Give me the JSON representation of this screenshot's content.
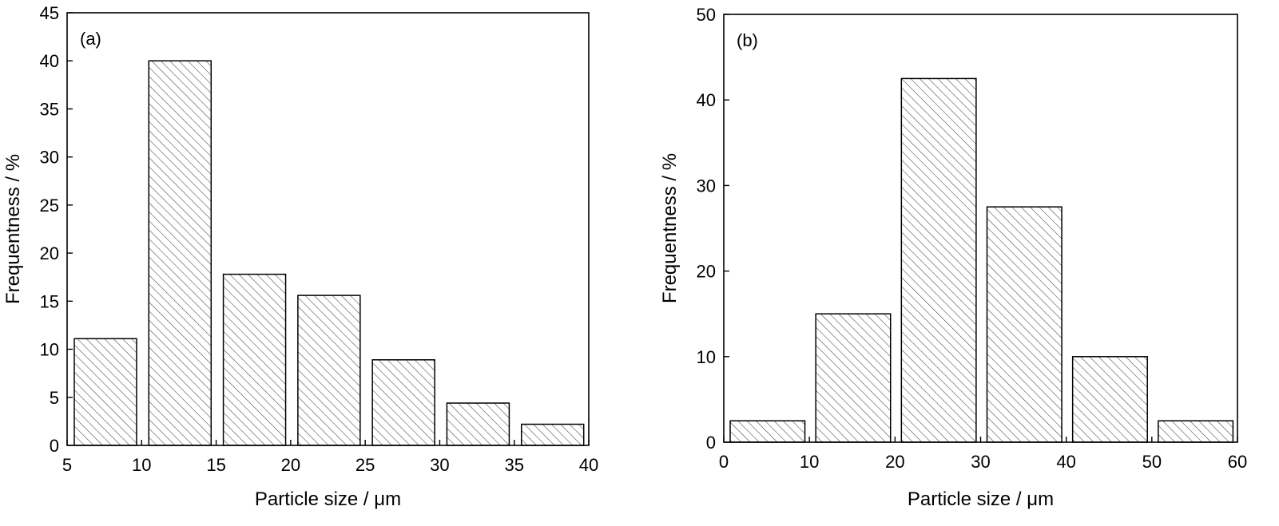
{
  "chart_data": [
    {
      "type": "bar",
      "panel_label": "(a)",
      "xlabel": "Particle size / μm",
      "ylabel": "Frequentness / %",
      "xlim": [
        5,
        40
      ],
      "ylim": [
        0,
        45
      ],
      "xticks": [
        5,
        10,
        15,
        20,
        25,
        30,
        35,
        40
      ],
      "yticks": [
        0,
        5,
        10,
        15,
        20,
        25,
        30,
        35,
        40,
        45
      ],
      "bins": [
        [
          5,
          10
        ],
        [
          10,
          15
        ],
        [
          15,
          20
        ],
        [
          20,
          25
        ],
        [
          25,
          30
        ],
        [
          30,
          35
        ],
        [
          35,
          40
        ]
      ],
      "values": [
        11.1,
        40.0,
        17.8,
        15.6,
        8.9,
        4.4,
        2.2
      ],
      "bar_fill": "diagonal-hatch",
      "grid": false
    },
    {
      "type": "bar",
      "panel_label": "(b)",
      "xlabel": "Particle size / μm",
      "ylabel": "Frequentness / %",
      "xlim": [
        0,
        60
      ],
      "ylim": [
        0,
        50
      ],
      "xticks": [
        0,
        10,
        20,
        30,
        40,
        50,
        60
      ],
      "yticks": [
        0,
        10,
        20,
        30,
        40,
        50
      ],
      "bins": [
        [
          0,
          10
        ],
        [
          10,
          20
        ],
        [
          20,
          30
        ],
        [
          30,
          40
        ],
        [
          40,
          50
        ],
        [
          50,
          60
        ]
      ],
      "values": [
        2.5,
        15.0,
        42.5,
        27.5,
        10.0,
        2.5
      ],
      "bar_fill": "diagonal-hatch",
      "grid": false
    }
  ]
}
